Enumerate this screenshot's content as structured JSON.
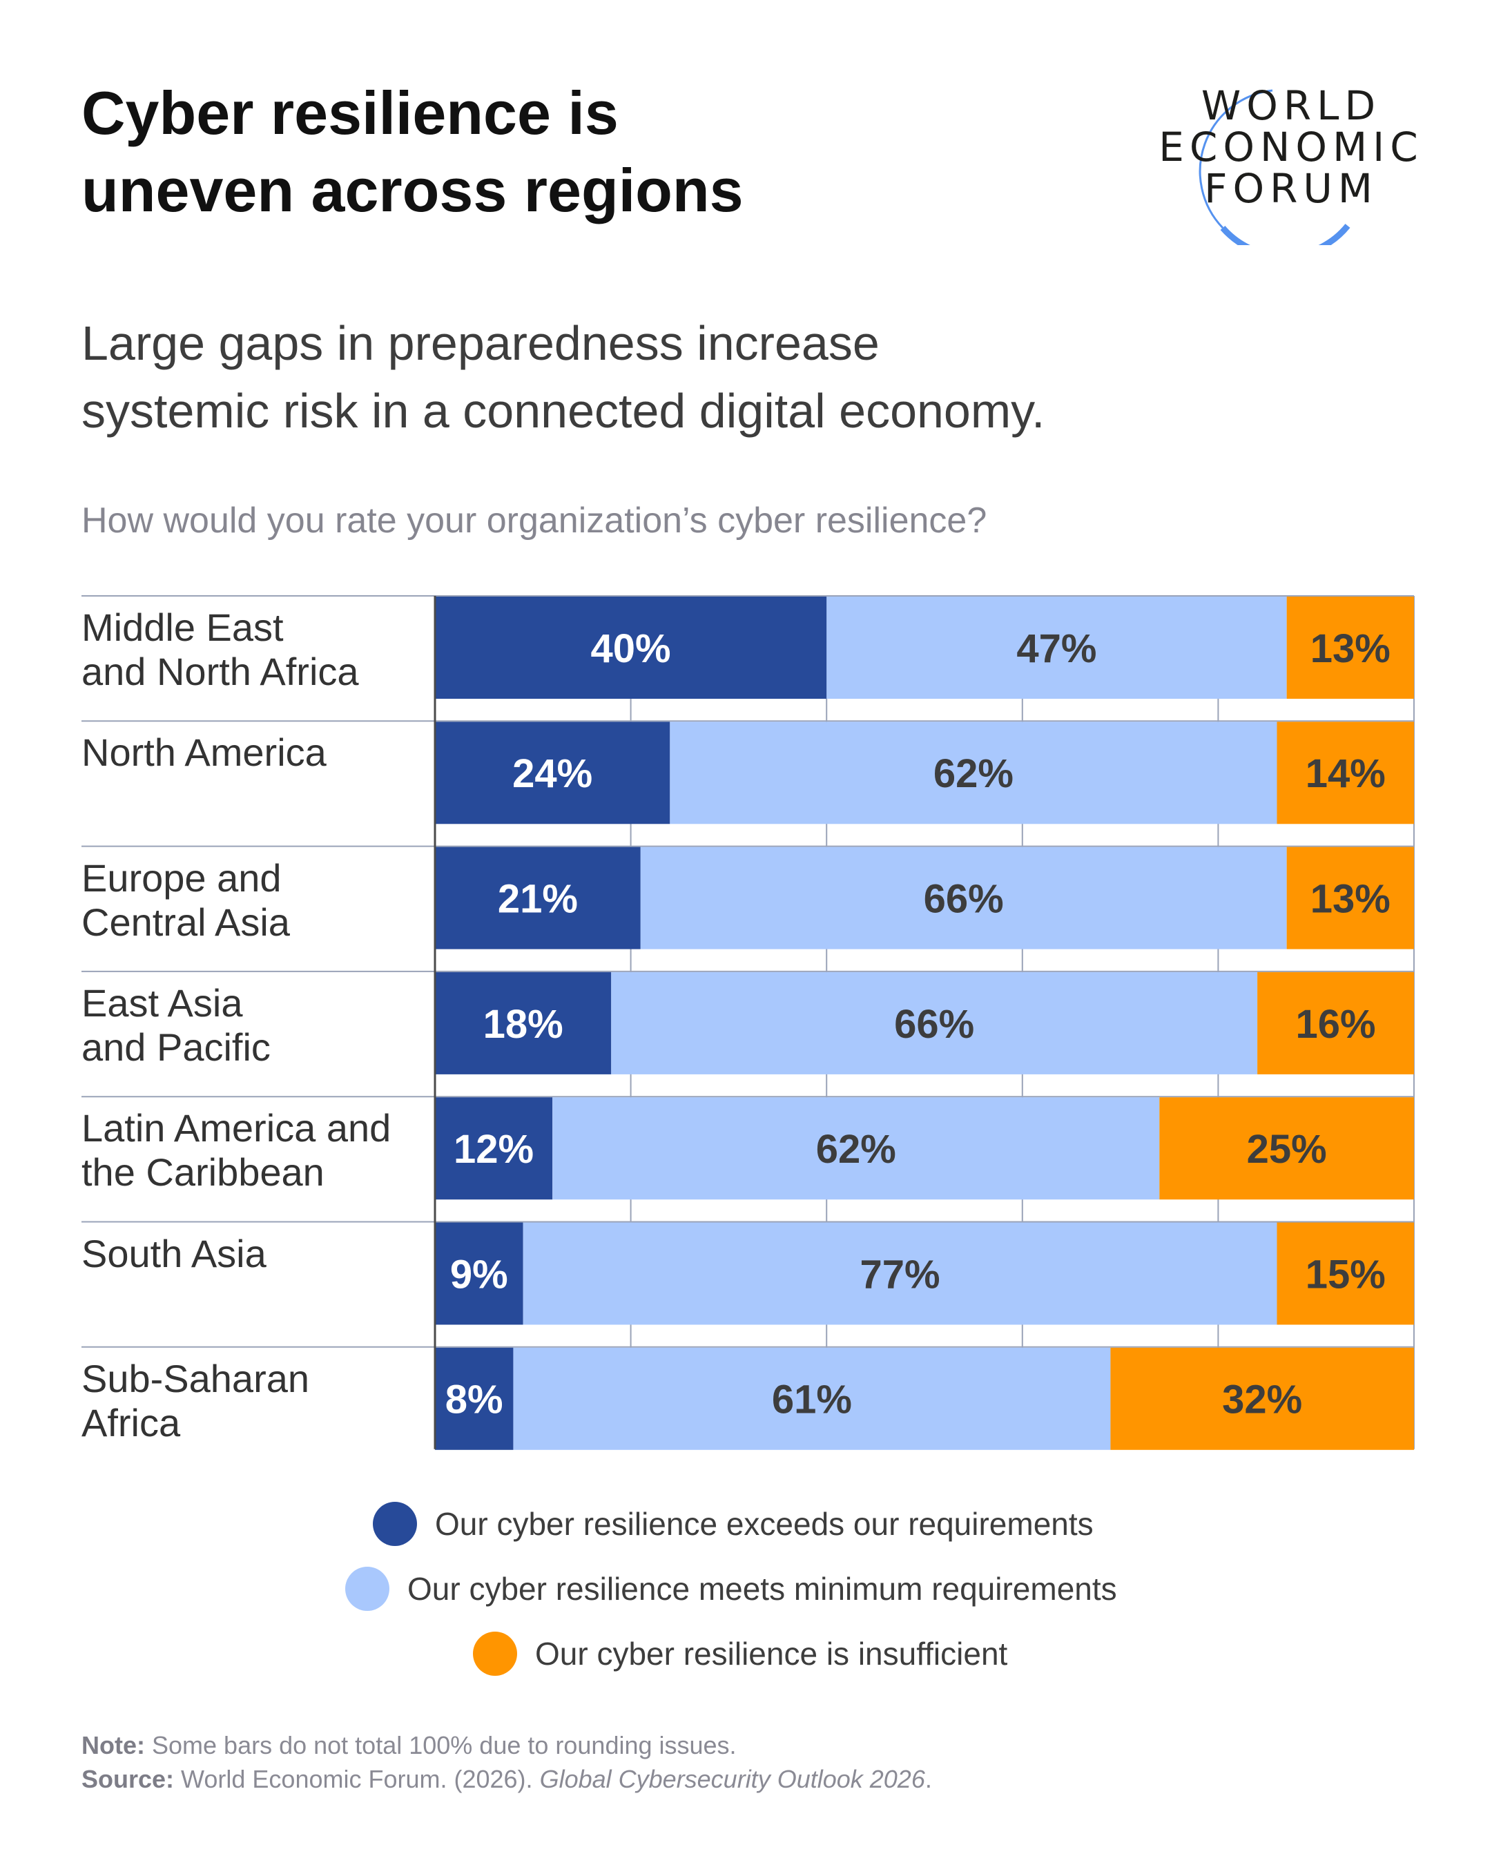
{
  "header": {
    "title_line1": "Cyber resilience is",
    "title_line2": "uneven across regions",
    "subtitle_line1": "Large gaps in preparedness increase",
    "subtitle_line2": "systemic risk in a connected digital economy.",
    "question": "How would you rate your organization’s cyber resilience?"
  },
  "logo": {
    "line1": "WORLD",
    "line2": "ECONOMIC",
    "line3": "FORUM",
    "arc_color": "#5592ef"
  },
  "colors": {
    "exceeds": "#274a99",
    "meets": "#a9c8fd",
    "insufficient": "#ff9500",
    "label_on_dark": "#ffffff",
    "label_on_light": "#3d3d3d",
    "gridline": "#9aa3b8",
    "axis": "#4a4a4a"
  },
  "chart_data": {
    "type": "bar",
    "orientation": "horizontal",
    "stacked": true,
    "title": "How would you rate your organization’s cyber resilience?",
    "xlabel": "",
    "ylabel": "",
    "xlim": [
      0,
      100
    ],
    "grid": true,
    "gridlines_at": [
      20,
      40,
      60,
      80
    ],
    "legend_position": "bottom",
    "categories": [
      "Middle East and North Africa",
      "North America",
      "Europe and Central Asia",
      "East Asia and Pacific",
      "Latin America and the Caribbean",
      "South Asia",
      "Sub-Saharan Africa"
    ],
    "category_label_lines": [
      [
        "Middle East",
        "and North Africa"
      ],
      [
        "North America"
      ],
      [
        "Europe and",
        "Central Asia"
      ],
      [
        "East Asia",
        "and Pacific"
      ],
      [
        "Latin America and",
        "the Caribbean"
      ],
      [
        "South Asia"
      ],
      [
        "Sub-Saharan",
        "Africa"
      ]
    ],
    "series": [
      {
        "name": "Our cyber resilience exceeds our requirements",
        "key": "exceeds",
        "values": [
          40,
          24,
          21,
          18,
          12,
          9,
          8
        ]
      },
      {
        "name": "Our cyber resilience meets minimum requirements",
        "key": "meets",
        "values": [
          47,
          62,
          66,
          66,
          62,
          77,
          61
        ]
      },
      {
        "name": "Our cyber resilience is insufficient",
        "key": "insufficient",
        "values": [
          13,
          14,
          13,
          16,
          25,
          15,
          32
        ]
      }
    ],
    "value_suffix": "%"
  },
  "legend": [
    {
      "label": "Our cyber resilience exceeds our requirements",
      "key": "exceeds"
    },
    {
      "label": "Our cyber resilience meets minimum requirements",
      "key": "meets"
    },
    {
      "label": "Our cyber resilience is insufficient",
      "key": "insufficient"
    }
  ],
  "footer": {
    "note_label": "Note:",
    "note_text": " Some bars do not total 100% due to rounding issues.",
    "source_label": "Source:",
    "source_text": " World Economic Forum. (2026). ",
    "source_italic": "Global Cybersecurity Outlook 2026",
    "source_end": "."
  }
}
